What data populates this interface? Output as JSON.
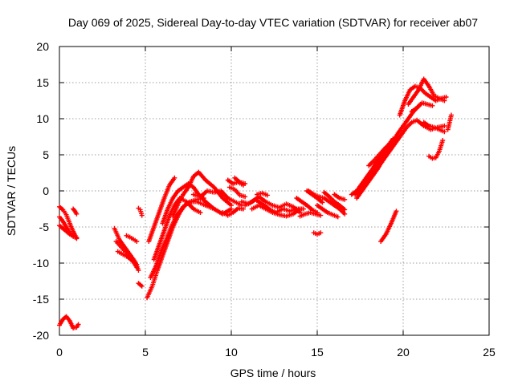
{
  "chart_data": {
    "type": "scatter",
    "title": "Day 069 of 2025, Sidereal Day-to-day VTEC variation (SDTVAR) for receiver ab07",
    "xlabel": "GPS time / hours",
    "ylabel": "SDTVAR / TECUs",
    "xlim": [
      0,
      25
    ],
    "ylim": [
      -20,
      20
    ],
    "x_ticks": [
      0,
      5,
      10,
      15,
      20,
      25
    ],
    "y_ticks": [
      -20,
      -15,
      -10,
      -5,
      0,
      5,
      10,
      15,
      20
    ],
    "x_tick_labels": [
      "0",
      "5",
      "10",
      "15",
      "20",
      "25"
    ],
    "y_tick_labels": [
      "-20",
      "-15",
      "-10",
      "-5",
      "0",
      "5",
      "10",
      "15",
      "20"
    ],
    "grid": true,
    "marker": "plus",
    "color": "#ff0000",
    "series": [
      {
        "x": [
          0.0,
          0.2,
          0.4,
          0.6,
          0.8,
          1.0
        ],
        "y": [
          -2.2,
          -2.6,
          -3.3,
          -4.5,
          -5.6,
          -6.6
        ]
      },
      {
        "x": [
          0.0,
          0.2,
          0.4,
          0.6,
          0.8,
          1.0
        ],
        "y": [
          -3.6,
          -4.2,
          -5.0,
          -5.8,
          -6.3,
          -6.5
        ]
      },
      {
        "x": [
          0.0,
          0.2,
          0.4,
          0.6,
          0.8,
          1.0
        ],
        "y": [
          -4.8,
          -5.2,
          -5.6,
          -6.0,
          -6.3,
          -6.5
        ]
      },
      {
        "x": [
          0.8,
          0.9,
          1.0
        ],
        "y": [
          -2.5,
          -2.8,
          -3.2
        ]
      },
      {
        "x": [
          0.0,
          0.2,
          0.4,
          0.6,
          0.8,
          1.0,
          1.1
        ],
        "y": [
          -18.6,
          -17.8,
          -17.4,
          -18.0,
          -19.0,
          -18.9,
          -18.5
        ]
      },
      {
        "x": [
          3.2,
          3.5,
          3.8,
          4.1,
          4.4,
          4.6
        ],
        "y": [
          -5.2,
          -6.8,
          -7.8,
          -8.8,
          -9.8,
          -11.0
        ]
      },
      {
        "x": [
          3.3,
          3.6,
          3.9,
          4.2,
          4.5
        ],
        "y": [
          -7.0,
          -7.8,
          -8.6,
          -9.4,
          -10.2
        ]
      },
      {
        "x": [
          3.4,
          3.7,
          4.0,
          4.3,
          4.5
        ],
        "y": [
          -8.4,
          -8.8,
          -9.2,
          -9.8,
          -10.6
        ]
      },
      {
        "x": [
          3.9,
          4.1,
          4.3,
          4.5
        ],
        "y": [
          -6.2,
          -6.4,
          -6.7,
          -7.0
        ]
      },
      {
        "x": [
          4.6,
          4.7,
          4.8
        ],
        "y": [
          -2.4,
          -2.6,
          -3.4
        ]
      },
      {
        "x": [
          4.6,
          4.8
        ],
        "y": [
          -12.8,
          -13.2
        ]
      },
      {
        "x": [
          5.1,
          5.4,
          5.7,
          6.0,
          6.3,
          6.6,
          7.0,
          7.3,
          7.6,
          8.0,
          8.4
        ],
        "y": [
          -14.8,
          -13.2,
          -11.0,
          -9.0,
          -7.0,
          -5.0,
          -3.0,
          -2.0,
          -1.5,
          -1.2,
          -1.0
        ]
      },
      {
        "x": [
          5.3,
          5.6,
          5.9,
          6.2,
          6.5,
          6.8,
          7.2,
          7.6,
          8.0,
          8.5,
          9.0
        ],
        "y": [
          -12.0,
          -10.5,
          -8.5,
          -6.8,
          -5.0,
          -3.5,
          -2.2,
          -1.5,
          -1.5,
          -2.0,
          -2.5
        ]
      },
      {
        "x": [
          5.2,
          5.5,
          5.8,
          6.1,
          6.4,
          6.7
        ],
        "y": [
          -7.0,
          -5.0,
          -3.0,
          -1.0,
          0.8,
          1.8
        ]
      },
      {
        "x": [
          5.5,
          5.8,
          6.1,
          6.4,
          6.7,
          7.0,
          7.4,
          7.8,
          8.2
        ],
        "y": [
          -9.5,
          -7.5,
          -5.5,
          -3.5,
          -2.0,
          -1.0,
          -1.5,
          -2.5,
          -3.0
        ]
      },
      {
        "x": [
          6.0,
          6.3,
          6.6,
          6.9,
          7.2,
          7.5,
          7.8,
          8.1,
          8.5,
          9.0,
          9.5,
          10.0
        ],
        "y": [
          -4.5,
          -2.5,
          -1.0,
          0.0,
          0.5,
          1.0,
          0.5,
          -0.5,
          -1.5,
          -2.5,
          -3.2,
          -2.5
        ]
      },
      {
        "x": [
          6.6,
          6.9,
          7.2,
          7.5,
          7.8,
          8.1,
          8.5,
          9.0,
          9.5,
          10.0
        ],
        "y": [
          -3.5,
          -1.8,
          -0.5,
          0.5,
          2.0,
          2.6,
          1.5,
          0.5,
          -1.0,
          -2.0
        ]
      },
      {
        "x": [
          7.8,
          8.2,
          8.6,
          9.0,
          9.4,
          9.8,
          10.2,
          10.6
        ],
        "y": [
          -0.5,
          -0.8,
          0.0,
          -0.2,
          0.0,
          -1.0,
          -1.5,
          -2.0
        ]
      },
      {
        "x": [
          9.5,
          9.8,
          10.1,
          10.4,
          10.7
        ],
        "y": [
          -3.0,
          -3.4,
          -3.0,
          -2.4,
          -2.5
        ]
      },
      {
        "x": [
          9.8,
          10.1,
          10.4,
          10.7
        ],
        "y": [
          1.5,
          1.0,
          1.2,
          0.8
        ]
      },
      {
        "x": [
          9.9,
          10.2,
          10.5,
          10.8
        ],
        "y": [
          0.5,
          0.2,
          -0.6,
          -0.8
        ]
      },
      {
        "x": [
          10.2,
          10.5,
          10.8
        ],
        "y": [
          1.8,
          1.2,
          1.0
        ]
      },
      {
        "x": [
          10.6,
          11.0,
          11.4,
          11.8,
          12.2,
          12.6,
          13.0,
          13.4,
          13.8,
          14.2
        ],
        "y": [
          -1.5,
          -1.8,
          -1.2,
          -1.8,
          -2.5,
          -3.0,
          -2.5,
          -2.8,
          -2.5,
          -2.5
        ]
      },
      {
        "x": [
          10.8,
          11.2,
          11.6,
          12.0,
          12.4,
          12.8,
          13.2,
          13.6,
          14.0
        ],
        "y": [
          -2.0,
          -1.5,
          -0.8,
          -1.5,
          -2.0,
          -2.3,
          -1.8,
          -2.2,
          -3.0
        ]
      },
      {
        "x": [
          11.2,
          11.6,
          12.0,
          12.4,
          12.8,
          13.2,
          13.6,
          14.0
        ],
        "y": [
          -2.5,
          -2.0,
          -2.5,
          -3.0,
          -3.3,
          -3.5,
          -3.2,
          -2.5
        ]
      },
      {
        "x": [
          11.5,
          11.8,
          12.1
        ],
        "y": [
          -0.5,
          -0.3,
          -0.6
        ]
      },
      {
        "x": [
          13.8,
          14.1,
          14.4,
          14.7,
          15.0
        ],
        "y": [
          -1.0,
          -1.5,
          -2.0,
          -2.6,
          -3.0
        ]
      },
      {
        "x": [
          14.0,
          14.3,
          14.6,
          14.9,
          15.2
        ],
        "y": [
          -3.5,
          -3.2,
          -3.0,
          -3.2,
          -3.4
        ]
      },
      {
        "x": [
          14.4,
          14.7,
          15.0,
          15.3
        ],
        "y": [
          0.0,
          -0.5,
          -1.0,
          -1.6
        ]
      },
      {
        "x": [
          14.5,
          14.8,
          15.1,
          15.4,
          15.7,
          16.0,
          16.3,
          16.6
        ],
        "y": [
          0.0,
          -0.5,
          -0.8,
          -1.0,
          -1.5,
          -2.0,
          -2.5,
          -3.2
        ]
      },
      {
        "x": [
          15.0,
          15.3,
          15.6,
          15.9,
          16.2
        ],
        "y": [
          -2.0,
          -2.5,
          -3.0,
          -3.3,
          -3.6
        ]
      },
      {
        "x": [
          15.4,
          15.7,
          16.0,
          16.3,
          16.6
        ],
        "y": [
          -0.2,
          -0.8,
          -1.5,
          -2.0,
          -2.6
        ]
      },
      {
        "x": [
          14.8,
          15.0,
          15.2
        ],
        "y": [
          -5.8,
          -6.0,
          -5.8
        ]
      },
      {
        "x": [
          16.0,
          16.3,
          16.6
        ],
        "y": [
          -0.5,
          -1.0,
          -1.2
        ]
      },
      {
        "x": [
          17.0,
          17.3,
          17.6,
          17.9,
          18.2,
          18.5,
          18.8,
          19.1,
          19.4
        ],
        "y": [
          -0.5,
          0.0,
          1.0,
          2.0,
          3.0,
          4.2,
          5.2,
          6.2,
          7.2
        ]
      },
      {
        "x": [
          17.2,
          17.5,
          17.8,
          18.1,
          18.4,
          18.7,
          19.0,
          19.3,
          19.6
        ],
        "y": [
          -0.5,
          0.5,
          1.5,
          2.5,
          3.5,
          4.5,
          5.5,
          6.5,
          7.5
        ]
      },
      {
        "x": [
          17.3,
          17.6,
          17.9,
          18.2,
          18.5,
          18.8,
          19.1,
          19.4,
          19.7,
          20.0,
          20.3,
          20.6,
          21.0
        ],
        "y": [
          -1.0,
          0.0,
          1.0,
          2.0,
          3.0,
          4.2,
          5.5,
          6.8,
          8.0,
          9.0,
          10.0,
          11.0,
          12.0
        ]
      },
      {
        "x": [
          17.5,
          17.8,
          18.1,
          18.4,
          18.7,
          19.0,
          19.3,
          19.6,
          19.9,
          20.2,
          20.5,
          20.8,
          21.2,
          21.6,
          22.0,
          22.4
        ],
        "y": [
          -0.2,
          0.8,
          1.8,
          2.8,
          3.8,
          4.8,
          5.8,
          6.8,
          7.8,
          8.8,
          9.5,
          9.8,
          9.0,
          8.5,
          8.8,
          9.0
        ]
      },
      {
        "x": [
          18.0,
          18.3,
          18.6,
          18.9,
          19.2
        ],
        "y": [
          3.5,
          4.2,
          5.0,
          5.8,
          6.5
        ]
      },
      {
        "x": [
          18.7,
          19.0,
          19.3,
          19.6
        ],
        "y": [
          -7.0,
          -6.0,
          -4.5,
          -2.8
        ]
      },
      {
        "x": [
          19.8,
          20.1,
          20.4,
          20.7,
          21.0,
          21.3,
          21.6,
          21.9,
          22.2,
          22.5
        ],
        "y": [
          10.5,
          12.5,
          14.0,
          14.5,
          14.2,
          13.5,
          13.0,
          12.5,
          12.8,
          13.0
        ]
      },
      {
        "x": [
          20.3,
          20.6,
          20.9,
          21.2,
          21.5,
          21.8,
          22.1,
          22.4
        ],
        "y": [
          12.0,
          13.0,
          14.0,
          15.5,
          14.5,
          13.2,
          12.8,
          12.5
        ]
      },
      {
        "x": [
          20.5,
          20.8,
          21.1,
          21.4,
          21.7
        ],
        "y": [
          11.0,
          11.5,
          12.2,
          12.0,
          11.8
        ]
      },
      {
        "x": [
          21.2,
          21.5,
          21.8,
          22.1,
          22.4
        ],
        "y": [
          9.5,
          9.0,
          8.8,
          8.5,
          8.2
        ]
      },
      {
        "x": [
          21.5,
          21.7,
          21.9,
          22.1,
          22.3
        ],
        "y": [
          4.8,
          4.5,
          4.6,
          5.5,
          7.0
        ]
      },
      {
        "x": [
          22.6,
          22.7,
          22.8
        ],
        "y": [
          8.5,
          9.5,
          10.5
        ]
      }
    ]
  }
}
